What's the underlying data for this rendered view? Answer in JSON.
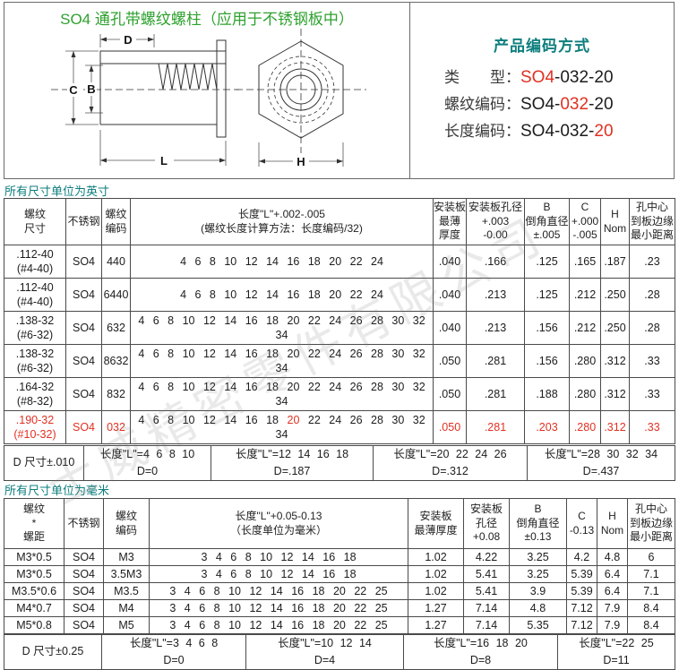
{
  "header": {
    "title": "SO4 通孔带螺纹螺柱（应用于不锈钢板中）"
  },
  "colors": {
    "title_green": "#2ea12e",
    "section_teal": "#0d7d7d",
    "highlight_red": "#e13022",
    "table_border": "#4a4a4a"
  },
  "drawing": {
    "labels": {
      "d": "D",
      "c": "C",
      "b": "B",
      "l": "L",
      "h": "H"
    }
  },
  "coding": {
    "heading": "产品编码方式",
    "rows": [
      {
        "label": "类　　型：",
        "pre": "",
        "hl": "SO4",
        "post": "-032-20"
      },
      {
        "label": "螺纹编码：",
        "pre": "SO4-",
        "hl": "032",
        "post": "-20"
      },
      {
        "label": "长度编码：",
        "pre": "SO4-032-",
        "hl": "20",
        "post": ""
      }
    ]
  },
  "inch": {
    "unit_label": "所有尺寸单位为英寸",
    "headers": [
      "螺纹\n尺寸",
      "不锈钢",
      "螺纹\n编码",
      "长度\"L\"+.002-.005\n(螺纹长度计算方法：长度编码/32)",
      "安装板\n最薄\n厚度",
      "安装板孔径\n+.003\n-0.00",
      "B\n倒角直径\n±.005",
      "C\n+.000\n-.005",
      "H\nNom",
      "孔中心\n到板边缘\n最小距离"
    ],
    "rows": [
      {
        "red": false,
        "cells": [
          ".112-40\n(#4-40)",
          "SO4",
          "440",
          "4 6 8 10 12 14 16 18 20 22 24",
          ".040",
          ".166",
          ".125",
          ".165",
          ".187",
          ".23"
        ]
      },
      {
        "red": false,
        "cells": [
          ".112-40\n(#4-40)",
          "SO4",
          "6440",
          "4 6 8 10 12 14 16 18 20 22 24",
          ".040",
          ".213",
          ".125",
          ".212",
          ".250",
          ".28"
        ]
      },
      {
        "red": false,
        "cells": [
          ".138-32\n(#6-32)",
          "SO4",
          "632",
          "4 6 8 10 12 14 16 18 20 22 24 26 28 30 32 34",
          ".040",
          ".213",
          ".156",
          ".212",
          ".250",
          ".28"
        ]
      },
      {
        "red": false,
        "cells": [
          ".138-32\n(#6-32)",
          "SO4",
          "8632",
          "4 6 8 10 12 14 16 18 20 22 24 26 28 30 32 34",
          ".050",
          ".281",
          ".156",
          ".280",
          ".312",
          ".33"
        ]
      },
      {
        "red": false,
        "cells": [
          ".164-32\n(#8-32)",
          "SO4",
          "832",
          "4 6 8 10 12 14 16 18 20 22 24 26 28 30 32 34",
          ".050",
          ".281",
          ".188",
          ".280",
          ".312",
          ".33"
        ]
      },
      {
        "red": true,
        "cells": [
          ".190-32\n(#10-32)",
          "SO4",
          "032",
          [
            {
              "t": "4 6 8 10 12 14 16 18 "
            },
            {
              "t": "20",
              "red": true
            },
            {
              "t": " 22 24 26 28 30 32 34"
            }
          ],
          ".050",
          ".281",
          ".203",
          ".280",
          ".312",
          ".33"
        ]
      }
    ]
  },
  "inch_d": {
    "label": "D 尺寸±.010",
    "groups": [
      {
        "lengths": "长度\"L\"=4 6 8 10",
        "d": "D=0"
      },
      {
        "lengths": "长度\"L\"=12 14 16 18",
        "d": "D=.187"
      },
      {
        "lengths": "长度\"L\"=20 22 24 26",
        "d": "D=.312"
      },
      {
        "lengths": "长度\"L\"=28 30 32 34",
        "d": "D=.437"
      }
    ]
  },
  "metric": {
    "unit_label": "所有尺寸单位为毫米",
    "headers": [
      "螺纹\n*\n螺距",
      "不锈钢",
      "螺纹\n编码",
      "长度\"L\"+0.05-0.13\n（长度单位为毫米）",
      "安装板\n最薄厚度",
      "安装板\n孔径\n+0.08",
      "B\n倒角直径\n±0.13",
      "C\n-0.13",
      "H\nNom",
      "孔中心\n到板边缘\n最小距离"
    ],
    "rows": [
      {
        "red": false,
        "cells": [
          "M3*0.5",
          "SO4",
          "M3",
          "3 4 6 8 10 12 14 16 18",
          "1.02",
          "4.22",
          "3.25",
          "4.2",
          "4.8",
          "6"
        ]
      },
      {
        "red": false,
        "cells": [
          "M3*0.5",
          "SO4",
          "3.5M3",
          "3 4 6 8 10 12 14 16 18",
          "1.02",
          "5.41",
          "3.25",
          "5.39",
          "6.4",
          "7.1"
        ]
      },
      {
        "red": false,
        "cells": [
          "M3.5*0.6",
          "SO4",
          "M3.5",
          "3 4 6 8 10 12 14 16 18 20 22 25",
          "1.02",
          "5.41",
          "3.9",
          "5.39",
          "6.4",
          "7.1"
        ]
      },
      {
        "red": false,
        "cells": [
          "M4*0.7",
          "SO4",
          "M4",
          "3 4 6 8 10 12 14 16 18 20 22 25",
          "1.27",
          "7.14",
          "4.8",
          "7.12",
          "7.9",
          "8.4"
        ]
      },
      {
        "red": false,
        "cells": [
          "M5*0.8",
          "SO4",
          "M5",
          "3 4 6 8 10 12 14 16 18 20 22 25",
          "1.27",
          "7.14",
          "5.35",
          "7.12",
          "7.9",
          "8.4"
        ]
      }
    ]
  },
  "metric_d": {
    "label": "D 尺寸±0.25",
    "groups": [
      {
        "lengths": "长度\"L\"=3 4 6 8",
        "d": "D=0"
      },
      {
        "lengths": "长度\"L\"=10 12 14",
        "d": "D=4"
      },
      {
        "lengths": "长度\"L\"=16 18 20",
        "d": "D=8"
      },
      {
        "lengths": "长度\"L\"=22 25",
        "d": "D=11"
      }
    ]
  },
  "watermark": {
    "text": "士威精密零件有限公司"
  }
}
